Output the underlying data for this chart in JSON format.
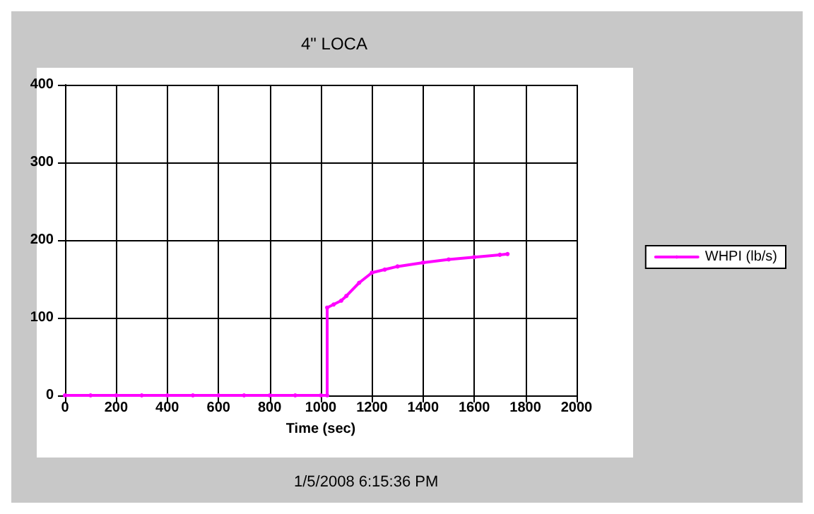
{
  "chart_data": {
    "type": "line",
    "title": "4\" LOCA",
    "xlabel": "Time (sec)",
    "x": [
      0,
      100,
      200,
      300,
      400,
      500,
      600,
      700,
      800,
      900,
      1000,
      1025,
      1025,
      1050,
      1080,
      1100,
      1150,
      1200,
      1250,
      1300,
      1400,
      1500,
      1600,
      1700,
      1730
    ],
    "series": [
      {
        "name": "WHPI (lb/s)",
        "color": "#ff00ff",
        "values": [
          0,
          0,
          0,
          0,
          0,
          0,
          0,
          0,
          0,
          0,
          0,
          0,
          113,
          117,
          122,
          128,
          145,
          158,
          162,
          166,
          171,
          175,
          178,
          181,
          182
        ]
      }
    ],
    "xlim": [
      0,
      2000
    ],
    "xticks": [
      0,
      200,
      400,
      600,
      800,
      1000,
      1200,
      1400,
      1600,
      1800,
      2000
    ],
    "ylim": [
      0,
      400
    ],
    "yticks": [
      0,
      100,
      200,
      300,
      400
    ],
    "grid": true,
    "legend": "right",
    "marker": "circle",
    "line_style": "solid",
    "annotations": [
      "1/5/2008 6:15:36 PM"
    ]
  }
}
